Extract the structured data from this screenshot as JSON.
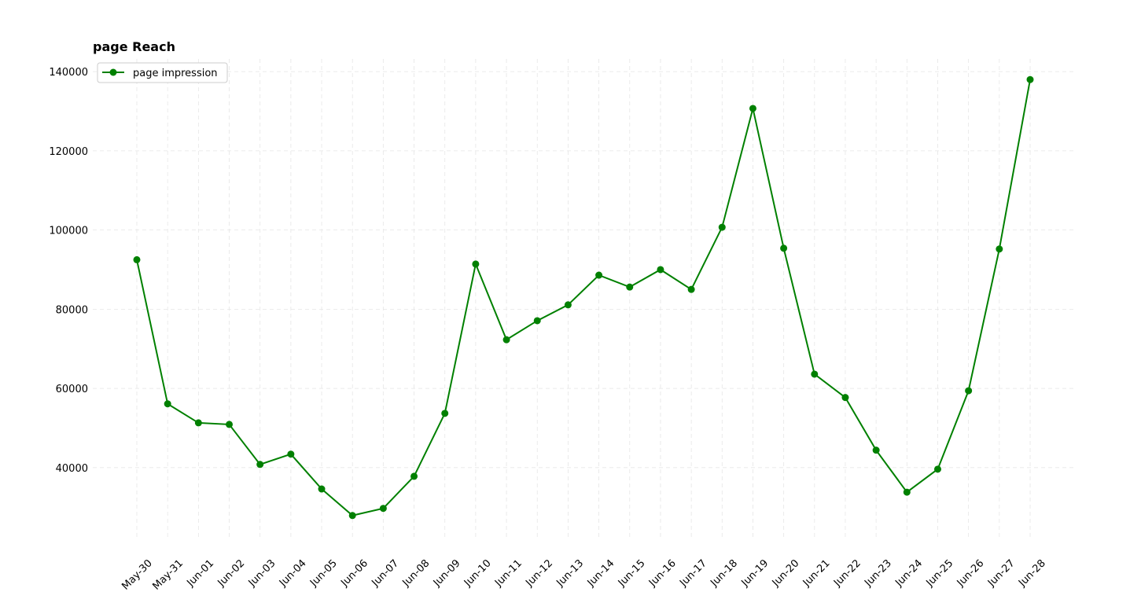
{
  "chart_data": {
    "type": "line",
    "title": "page Reach",
    "categories": [
      "May-30",
      "May-31",
      "Jun-01",
      "Jun-02",
      "Jun-03",
      "Jun-04",
      "Jun-05",
      "Jun-06",
      "Jun-07",
      "Jun-08",
      "Jun-09",
      "Jun-10",
      "Jun-11",
      "Jun-12",
      "Jun-13",
      "Jun-14",
      "Jun-15",
      "Jun-16",
      "Jun-17",
      "Jun-18",
      "Jun-19",
      "Jun-20",
      "Jun-21",
      "Jun-22",
      "Jun-23",
      "Jun-24",
      "Jun-25",
      "Jun-26",
      "Jun-27",
      "Jun-28"
    ],
    "series": [
      {
        "name": "page impression",
        "color": "#008000",
        "values": [
          92500,
          56100,
          51300,
          50900,
          40800,
          43400,
          34600,
          27900,
          29700,
          37800,
          53700,
          91400,
          72300,
          77100,
          81100,
          88600,
          85600,
          90000,
          85000,
          100700,
          130700,
          95400,
          63600,
          57700,
          44400,
          33800,
          39600,
          59400,
          95200,
          138000
        ]
      }
    ],
    "ylim": [
      22100,
      143200
    ],
    "yticks": [
      40000,
      60000,
      80000,
      100000,
      120000,
      140000
    ],
    "grid": true,
    "legend": "upper-left"
  }
}
